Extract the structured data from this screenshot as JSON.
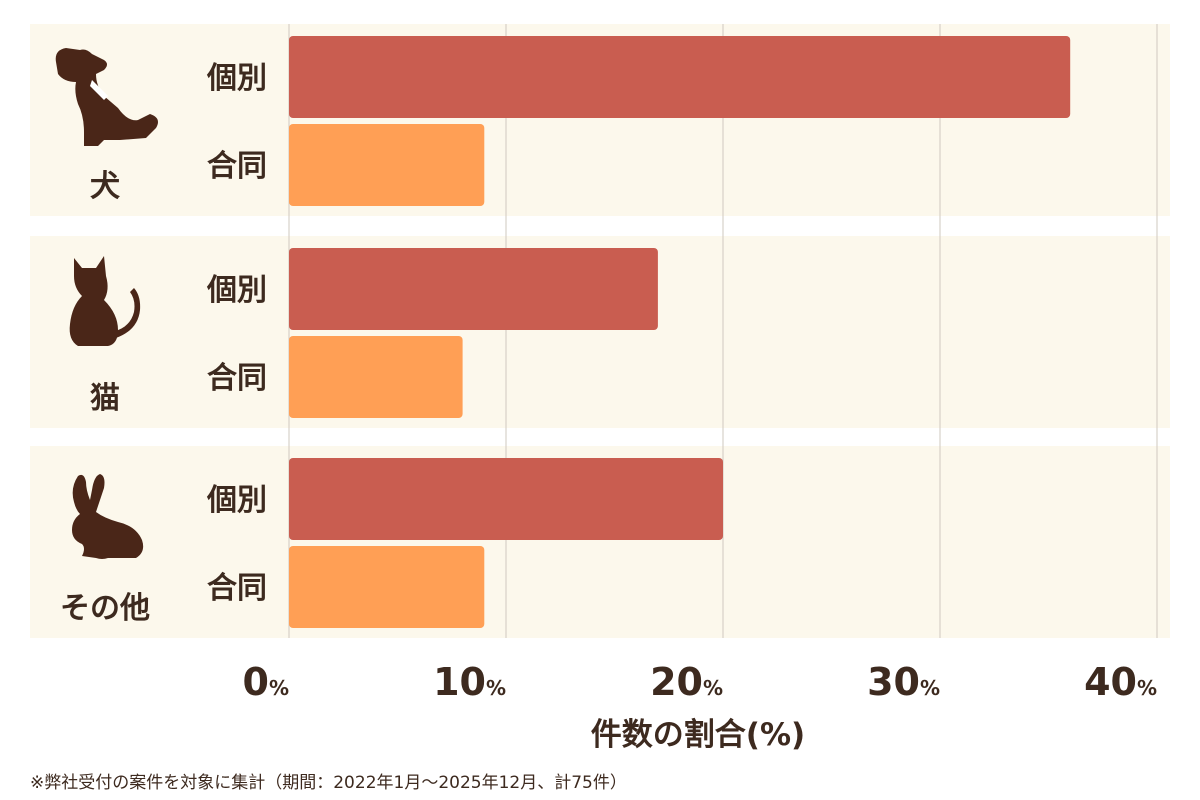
{
  "chart_data": {
    "type": "bar",
    "orientation": "horizontal",
    "groups": [
      {
        "label": "犬",
        "icon": "dog-icon",
        "bars": [
          {
            "label": "個別",
            "value": 36.0
          },
          {
            "label": "合同",
            "value": 9.0
          }
        ]
      },
      {
        "label": "猫",
        "icon": "cat-icon",
        "bars": [
          {
            "label": "個別",
            "value": 17.0
          },
          {
            "label": "合同",
            "value": 8.0
          }
        ]
      },
      {
        "label": "その他",
        "icon": "rabbit-icon",
        "bars": [
          {
            "label": "個別",
            "value": 20.0
          },
          {
            "label": "合同",
            "value": 9.0
          }
        ]
      }
    ],
    "xlabel": "件数の割合(%)",
    "xlim": [
      0,
      40
    ],
    "ticks": [
      0,
      10,
      20,
      30,
      40
    ],
    "tick_unit": "%",
    "grid": true,
    "colors": {
      "個別": "#c95d50",
      "合同": "#ff9f55",
      "panel": "#fcf8ec",
      "text": "#3d2a1f",
      "icon": "#4a2618"
    }
  },
  "footnote": "※弊社受付の案件を対象に集計（期間：2022年1月〜2025年12月、計75件）"
}
